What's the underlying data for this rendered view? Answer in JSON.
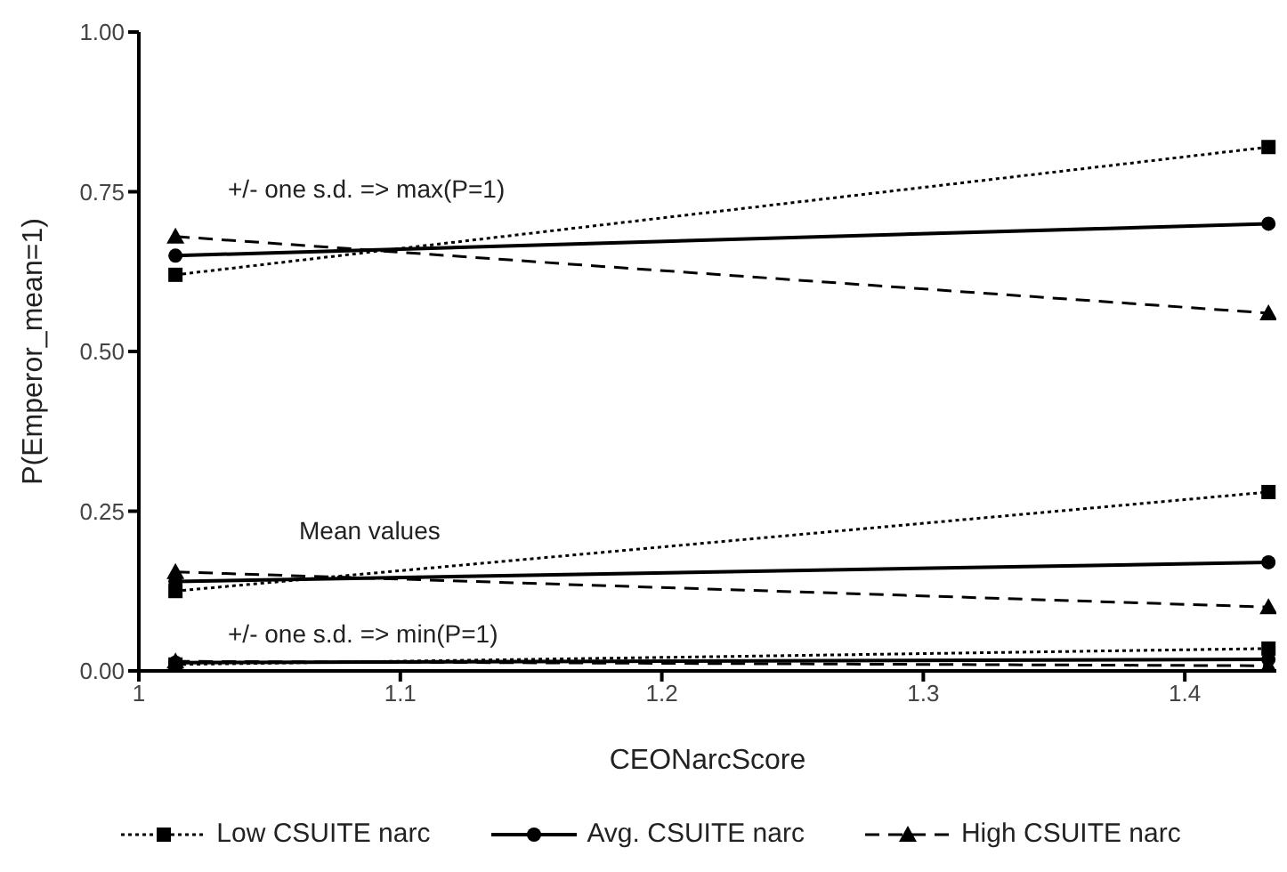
{
  "chart_data": {
    "type": "line",
    "xlabel": "CEONarcScore",
    "ylabel": "P(Emperor_mean=1)",
    "xlim": [
      1,
      1.435
    ],
    "xticks": [
      1,
      1.1,
      1.2,
      1.3,
      1.4
    ],
    "ylim": [
      0,
      1
    ],
    "yticks": [
      {
        "value": 0,
        "label": "0.00"
      },
      {
        "value": 0.25,
        "label": "0.25"
      },
      {
        "value": 0.5,
        "label": "0.50"
      },
      {
        "value": 0.75,
        "label": "0.75"
      },
      {
        "value": 1,
        "label": "1.00"
      }
    ],
    "grid": false,
    "legend": "bottom",
    "annotations": [
      "+/- one s.d. => max(P=1)",
      "Mean values",
      "+/- one s.d. => min(P=1)"
    ],
    "x": [
      1.014,
      1.432
    ],
    "series": [
      {
        "name": "Low CSUITE narc",
        "color": "#000000",
        "marker": "square",
        "line_style": "dotted",
        "values": [
          0.62,
          0.82
        ]
      },
      {
        "name": "Avg. CSUITE narc",
        "color": "#000000",
        "marker": "circle",
        "line_style": "solid",
        "values": [
          0.65,
          0.7
        ]
      },
      {
        "name": "High CSUITE narc",
        "color": "#000000",
        "marker": "triangle",
        "line_style": "dashed",
        "values": [
          0.68,
          0.56
        ]
      },
      {
        "color": "#000000",
        "marker": "square",
        "line_style": "dotted",
        "values": [
          0.125,
          0.28
        ]
      },
      {
        "color": "#000000",
        "marker": "circle",
        "line_style": "solid",
        "values": [
          0.14,
          0.17
        ]
      },
      {
        "color": "#000000",
        "marker": "triangle",
        "line_style": "dashed",
        "values": [
          0.155,
          0.1
        ]
      },
      {
        "color": "#000000",
        "marker": "square",
        "line_style": "dotted",
        "values": [
          0.01,
          0.035
        ]
      },
      {
        "color": "#000000",
        "marker": "circle",
        "line_style": "solid",
        "values": [
          0.013,
          0.018
        ]
      },
      {
        "color": "#000000",
        "marker": "triangle",
        "line_style": "dashed",
        "values": [
          0.015,
          0.008
        ]
      }
    ]
  }
}
